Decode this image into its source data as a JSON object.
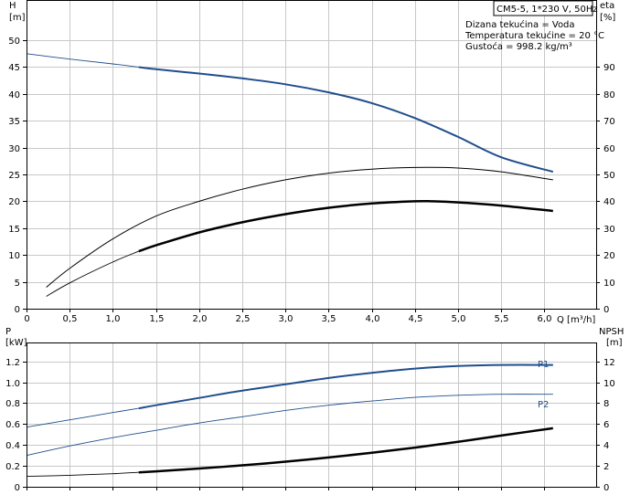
{
  "chart_data": [
    {
      "type": "line",
      "panel": "top",
      "title": "CM5-5, 1*230 V, 50Hz",
      "annotations": [
        "Dizana tekućina = Voda",
        "Temperatura tekućine = 20 °C",
        "Gustoća = 998.2 kg/m³"
      ],
      "xlabel": "Q [m³/h]",
      "x_ticks": [
        "0",
        "0,5",
        "1,0",
        "1,5",
        "2,0",
        "2,5",
        "3,0",
        "3,5",
        "4,0",
        "4,5",
        "5,0",
        "5,5",
        "6,0"
      ],
      "xlim": [
        0,
        6.6
      ],
      "ylabel_left": "H",
      "ylabel_left_unit": "[m]",
      "y_left_ticks": [
        "0",
        "5",
        "10",
        "15",
        "20",
        "25",
        "30",
        "35",
        "40",
        "45",
        "50"
      ],
      "ylim_left": [
        0,
        57.5
      ],
      "ylabel_right": "eta",
      "ylabel_right_unit": "[%]",
      "y_right_ticks": [
        "0",
        "10",
        "20",
        "30",
        "40",
        "50",
        "60",
        "70",
        "80",
        "90"
      ],
      "ylim_right": [
        0,
        115
      ],
      "grid": true,
      "series": [
        {
          "axis": "left",
          "color": "#1f4e8c",
          "width": 2,
          "thin_until": 1.3,
          "x": [
            0,
            0.5,
            1.0,
            1.3,
            1.5,
            2.0,
            2.5,
            3.0,
            3.5,
            4.0,
            4.5,
            5.0,
            5.5,
            6.1
          ],
          "values": [
            47.5,
            46.5,
            45.6,
            45.0,
            44.6,
            43.8,
            42.9,
            41.8,
            40.3,
            38.3,
            35.5,
            32.0,
            28.2,
            25.5
          ]
        },
        {
          "axis": "right",
          "color": "#000000",
          "width": 1,
          "x": [
            0.23,
            0.5,
            1.0,
            1.5,
            2.0,
            2.5,
            3.0,
            3.5,
            4.0,
            4.5,
            5.0,
            5.5,
            6.1
          ],
          "values": [
            8,
            15,
            26,
            34.5,
            40,
            44.5,
            48,
            50.5,
            52,
            52.6,
            52.4,
            51,
            48
          ]
        },
        {
          "axis": "left",
          "color": "#000000",
          "width": 2.5,
          "thin_until": 1.3,
          "x": [
            0.23,
            0.5,
            1.0,
            1.3,
            1.5,
            2.0,
            2.5,
            3.0,
            3.5,
            4.0,
            4.5,
            4.7,
            5.0,
            5.5,
            6.1
          ],
          "values": [
            2.3,
            4.8,
            8.7,
            10.7,
            11.8,
            14.2,
            16.1,
            17.6,
            18.8,
            19.6,
            20.0,
            20.0,
            19.8,
            19.2,
            18.2
          ]
        }
      ]
    },
    {
      "type": "line",
      "panel": "bottom",
      "ylabel_left": "P",
      "ylabel_left_unit": "[kW]",
      "y_left_ticks": [
        "0",
        "0.2",
        "0.4",
        "0.6",
        "0.8",
        "1.0",
        "1.2"
      ],
      "ylim_left": [
        0,
        1.38
      ],
      "ylabel_right": "NPSH",
      "ylabel_right_unit": "[m]",
      "y_right_ticks": [
        "0",
        "2",
        "4",
        "6",
        "8",
        "10",
        "12"
      ],
      "ylim_right": [
        0,
        13.8
      ],
      "xlim": [
        0,
        6.6
      ],
      "grid": true,
      "series": [
        {
          "name": "P1",
          "axis": "left",
          "color": "#1f4e8c",
          "width": 2,
          "thin_until": 1.3,
          "x": [
            0,
            0.5,
            1.0,
            1.3,
            1.5,
            2.0,
            2.5,
            3.0,
            3.5,
            4.0,
            4.5,
            5.0,
            5.5,
            6.1
          ],
          "values": [
            0.57,
            0.64,
            0.71,
            0.75,
            0.78,
            0.85,
            0.92,
            0.98,
            1.04,
            1.09,
            1.13,
            1.155,
            1.165,
            1.165
          ]
        },
        {
          "name": "P2",
          "axis": "left",
          "color": "#1f4e8c",
          "width": 1,
          "thin_until": 6.2,
          "x": [
            0,
            0.5,
            1.0,
            1.5,
            2.0,
            2.5,
            3.0,
            3.5,
            4.0,
            4.5,
            5.0,
            5.5,
            6.1
          ],
          "values": [
            0.3,
            0.39,
            0.47,
            0.54,
            0.61,
            0.67,
            0.73,
            0.78,
            0.82,
            0.855,
            0.875,
            0.885,
            0.885
          ]
        },
        {
          "axis": "right",
          "color": "#000000",
          "width": 2.5,
          "thin_until": 1.3,
          "x": [
            0,
            0.5,
            1.0,
            1.3,
            1.5,
            2.0,
            2.5,
            3.0,
            3.5,
            4.0,
            4.5,
            5.0,
            5.5,
            6.1
          ],
          "values": [
            1.0,
            1.1,
            1.25,
            1.38,
            1.48,
            1.75,
            2.05,
            2.4,
            2.8,
            3.25,
            3.75,
            4.3,
            4.9,
            5.6
          ]
        }
      ]
    }
  ]
}
